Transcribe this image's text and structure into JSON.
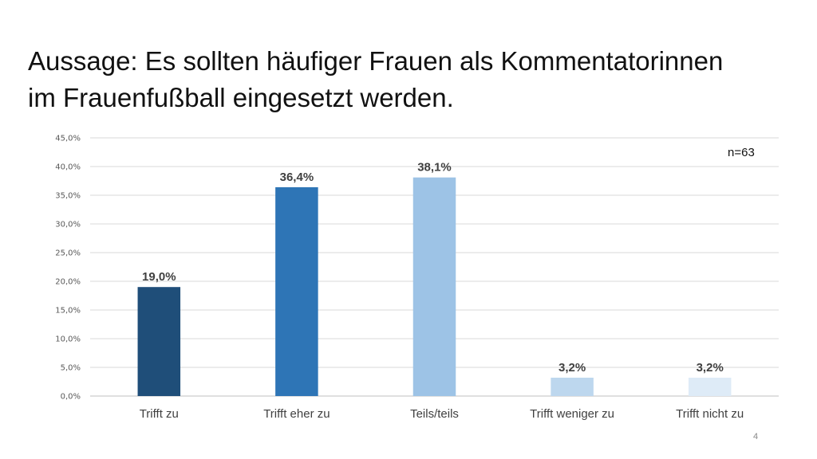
{
  "slide": {
    "title_line1": "Aussage: Es sollten häufiger Frauen als Kommentatorinnen",
    "title_line2": "im Frauenfußball eingesetzt werden.",
    "sample_size": "n=63",
    "page_number": "4"
  },
  "chart_data": {
    "type": "bar",
    "title": "Aussage: Es sollten häufiger Frauen als Kommentatorinnen im Frauenfußball eingesetzt werden.",
    "categories": [
      "Trifft zu",
      "Trifft eher zu",
      "Teils/teils",
      "Trifft weniger zu",
      "Trifft nicht zu"
    ],
    "values": [
      19.0,
      36.4,
      38.1,
      3.2,
      3.2
    ],
    "data_labels": [
      "19,0%",
      "36,4%",
      "38,1%",
      "3,2%",
      "3,2%"
    ],
    "bar_colors": [
      "#1F4E79",
      "#2E75B6",
      "#9DC3E6",
      "#BDD7EE",
      "#DEEBF7"
    ],
    "ylim": [
      0,
      45
    ],
    "yticks": [
      0,
      5,
      10,
      15,
      20,
      25,
      30,
      35,
      40,
      45
    ],
    "ytick_labels": [
      "0,0%",
      "5,0%",
      "10,0%",
      "15,0%",
      "20,0%",
      "25,0%",
      "30,0%",
      "35,0%",
      "40,0%",
      "45,0%"
    ],
    "grid": true,
    "legend": "none",
    "xlabel": "",
    "ylabel": "",
    "colors": {
      "gridline": "#D9D9D9",
      "axis_text": "#595959"
    }
  }
}
